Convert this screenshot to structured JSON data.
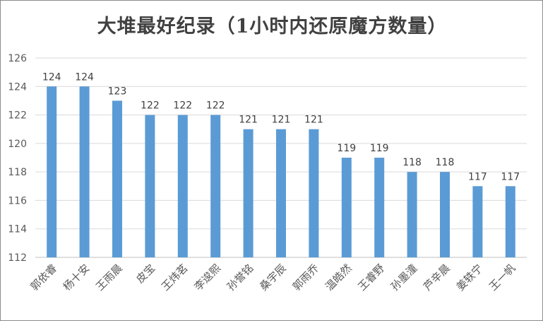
{
  "chart_data": {
    "type": "bar",
    "title": "大堆最好纪录（1小时内还原魔方数量）",
    "categories": [
      "郭依睿",
      "杨十安",
      "王雨晨",
      "皮宝",
      "王炜茗",
      "李逡熙",
      "孙誉铭",
      "桑宇辰",
      "郭雨乔",
      "温皓然",
      "王睿野",
      "孙墨潼",
      "芦辛晨",
      "姜轶宁",
      "王一帆"
    ],
    "values": [
      124,
      124,
      123,
      122,
      122,
      122,
      121,
      121,
      121,
      119,
      119,
      118,
      118,
      117,
      117
    ],
    "ylim": [
      112,
      126
    ],
    "yticks": [
      112,
      114,
      116,
      118,
      120,
      122,
      124,
      126
    ],
    "grid": true,
    "legend": "none",
    "bar_color": "#5b9bd5"
  }
}
